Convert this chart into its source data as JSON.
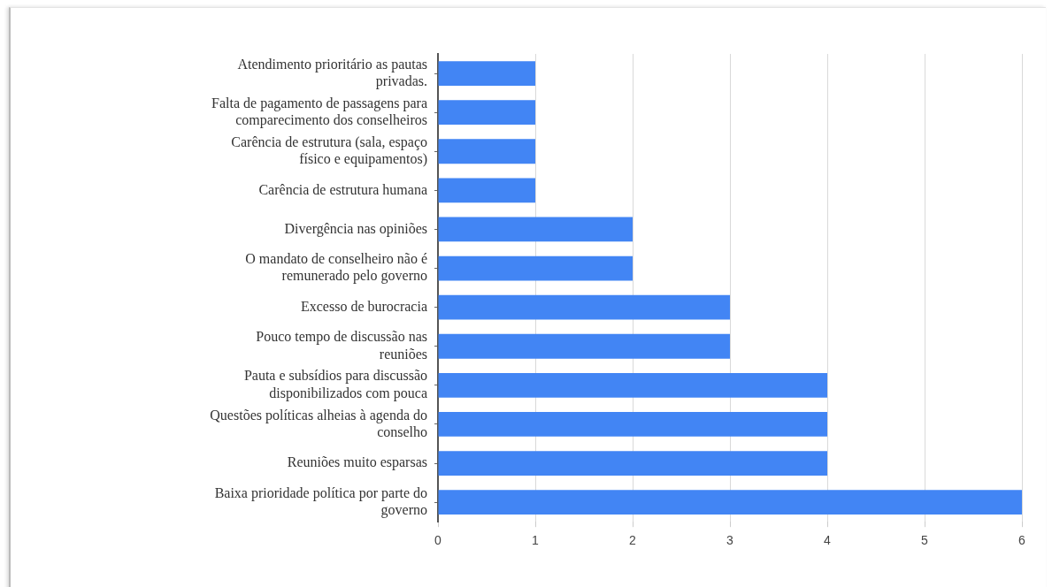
{
  "chart_data": {
    "type": "bar",
    "orientation": "horizontal",
    "categories": [
      "Atendimento prioritário as pautas privadas.",
      "Falta de pagamento de passagens para comparecimento dos conselheiros",
      "Carência de estrutura (sala, espaço físico e equipamentos)",
      "Carência de estrutura humana",
      "Divergência nas opiniões",
      "O mandato de conselheiro não é remunerado pelo governo",
      "Excesso de burocracia",
      "Pouco tempo de discussão nas reuniões",
      "Pauta e subsídios para discussão disponibilizados com pouca",
      "Questões políticas alheias à agenda do conselho",
      "Reuniões muito esparsas",
      "Baixa prioridade política por parte do governo"
    ],
    "values": [
      1,
      1,
      1,
      1,
      2,
      2,
      3,
      3,
      4,
      4,
      4,
      6
    ],
    "color": "#4285f4",
    "xlim": [
      0,
      6
    ],
    "xticks": [
      0,
      1,
      2,
      3,
      4,
      5,
      6
    ],
    "grid": "x",
    "legend": false
  }
}
